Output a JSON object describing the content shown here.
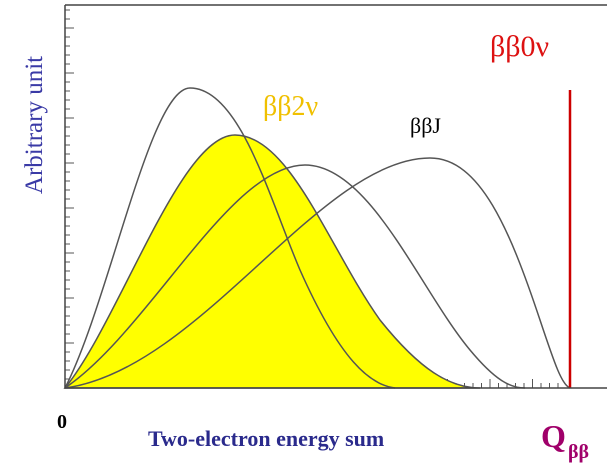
{
  "axis": {
    "y_label": "Arbitrary unit",
    "x_label": "Two-electron energy sum",
    "origin": "0",
    "q": "Q",
    "q_sub": "ββ"
  },
  "curves": {
    "two_neutrino": "ββ2ν",
    "majoron": "ββJ",
    "neutrinoless": "ββ0ν"
  }
}
